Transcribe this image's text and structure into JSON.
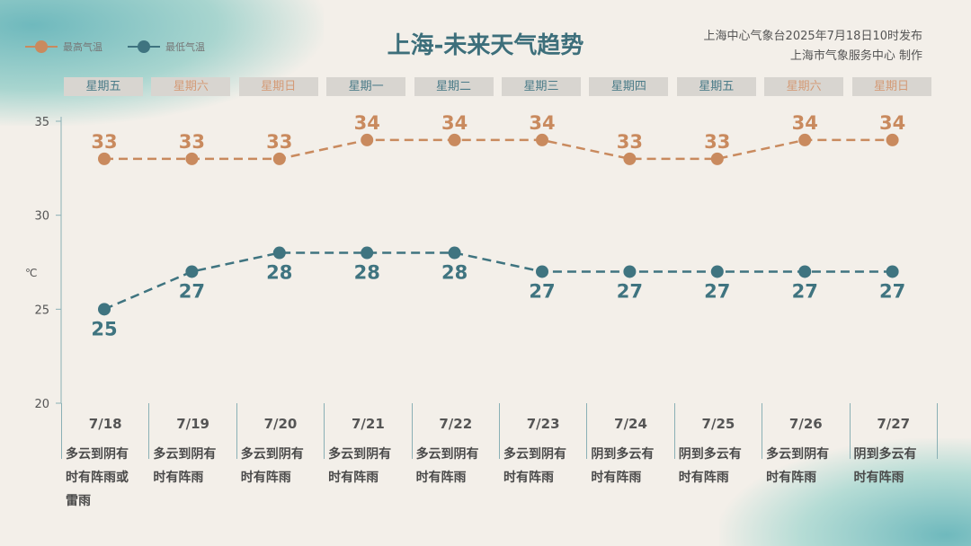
{
  "title": "上海-未来天气趋势",
  "publisher": {
    "line1": "上海中心气象台2025年7月18日10时发布",
    "line2": "上海市气象服务中心 制作"
  },
  "colors": {
    "high": "#c98a5e",
    "low": "#3f7480",
    "weekend": "#d49a76",
    "weekday": "#4a7b88"
  },
  "chart_data": {
    "type": "line",
    "title": "上海-未来天气趋势",
    "ylabel": "℃",
    "ylim": [
      20,
      35
    ],
    "yticks": [
      "20",
      "25",
      "30",
      "35"
    ],
    "categories": [
      "7/18",
      "7/19",
      "7/20",
      "7/21",
      "7/22",
      "7/23",
      "7/24",
      "7/25",
      "7/26",
      "7/27"
    ],
    "weekdays": [
      "星期五",
      "星期六",
      "星期日",
      "星期一",
      "星期二",
      "星期三",
      "星期四",
      "星期五",
      "星期六",
      "星期日"
    ],
    "weekend": [
      false,
      true,
      true,
      false,
      false,
      false,
      false,
      false,
      true,
      true
    ],
    "series": [
      {
        "name": "最高气温",
        "values": [
          33,
          33,
          33,
          34,
          34,
          34,
          33,
          33,
          34,
          34
        ]
      },
      {
        "name": "最低气温",
        "values": [
          25,
          27,
          28,
          28,
          28,
          27,
          27,
          27,
          27,
          27
        ]
      }
    ],
    "weather": [
      [
        "多云到阴有",
        "时有阵雨或",
        "雷雨"
      ],
      [
        "多云到阴有",
        "时有阵雨"
      ],
      [
        "多云到阴有",
        "时有阵雨"
      ],
      [
        "多云到阴有",
        "时有阵雨"
      ],
      [
        "多云到阴有",
        "时有阵雨"
      ],
      [
        "多云到阴有",
        "时有阵雨"
      ],
      [
        "阴到多云有",
        "时有阵雨"
      ],
      [
        "阴到多云有",
        "时有阵雨"
      ],
      [
        "多云到阴有",
        "时有阵雨"
      ],
      [
        "阴到多云有",
        "时有阵雨"
      ]
    ],
    "legend": "top-left",
    "grid": false
  }
}
